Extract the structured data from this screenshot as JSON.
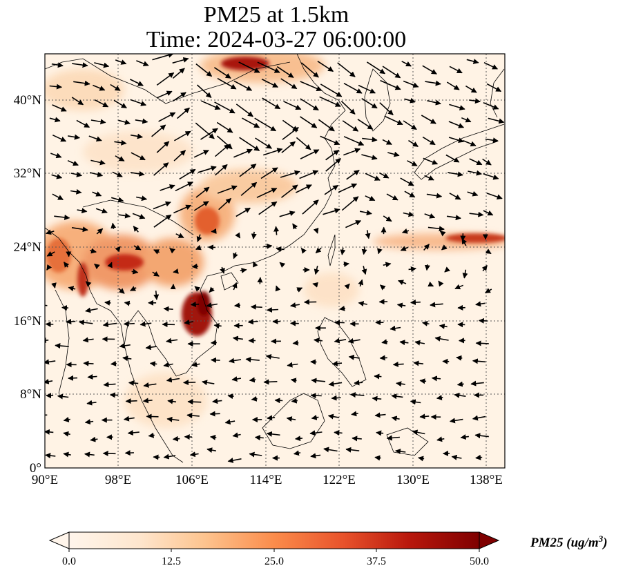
{
  "title": {
    "line1": "PM25 at 1.5km",
    "line2": "Time: 2024-03-27 06:00:00"
  },
  "map": {
    "lon_ticks": [
      "90°E",
      "98°E",
      "106°E",
      "114°E",
      "122°E",
      "130°E",
      "138°E"
    ],
    "lat_ticks": [
      "40°N",
      "32°N",
      "24°N",
      "16°N",
      "8°N",
      "0°"
    ],
    "extent": {
      "lon_min": 90,
      "lon_max": 140,
      "lat_min": 0,
      "lat_max": 45
    },
    "gridlines": true,
    "plume_color_max": "#7f0000",
    "wind_arrows": true
  },
  "colorbar": {
    "ticks": [
      "0.0",
      "12.5",
      "25.0",
      "37.5",
      "50.0"
    ],
    "range": [
      0,
      50
    ],
    "label": "PM25 (ug/m",
    "label_sup": "3",
    "label_close": ")",
    "colormap": [
      "#fff5eb",
      "#fdd9b3",
      "#fdb07a",
      "#f67d4a",
      "#d9401e",
      "#a81a0a",
      "#7f0000"
    ],
    "extend": "both"
  }
}
